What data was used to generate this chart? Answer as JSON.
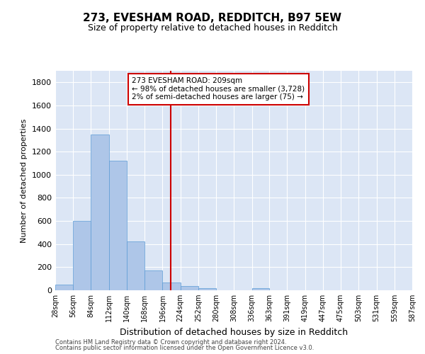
{
  "title": "273, EVESHAM ROAD, REDDITCH, B97 5EW",
  "subtitle": "Size of property relative to detached houses in Redditch",
  "xlabel": "Distribution of detached houses by size in Redditch",
  "ylabel": "Number of detached properties",
  "footnote1": "Contains HM Land Registry data © Crown copyright and database right 2024.",
  "footnote2": "Contains public sector information licensed under the Open Government Licence v3.0.",
  "annotation_line1": "273 EVESHAM ROAD: 209sqm",
  "annotation_line2": "← 98% of detached houses are smaller (3,728)",
  "annotation_line3": "2% of semi-detached houses are larger (75) →",
  "property_size": 209,
  "bar_color": "#aec6e8",
  "bar_edge_color": "#5b9bd5",
  "vline_color": "#cc0000",
  "annotation_box_color": "#cc0000",
  "background_color": "#dce6f5",
  "fig_background_color": "#ffffff",
  "bin_edges": [
    28,
    56,
    84,
    112,
    140,
    168,
    196,
    224,
    252,
    280,
    308,
    336,
    363,
    391,
    419,
    447,
    475,
    503,
    531,
    559,
    587
  ],
  "bar_heights": [
    50,
    600,
    1350,
    1120,
    420,
    170,
    65,
    35,
    20,
    0,
    0,
    20,
    0,
    0,
    0,
    0,
    0,
    0,
    0,
    0
  ],
  "ylim": [
    0,
    1900
  ],
  "yticks": [
    0,
    200,
    400,
    600,
    800,
    1000,
    1200,
    1400,
    1600,
    1800
  ],
  "title_fontsize": 11,
  "subtitle_fontsize": 9,
  "ylabel_fontsize": 8,
  "xlabel_fontsize": 9,
  "ytick_fontsize": 8,
  "xtick_fontsize": 7,
  "footnote_fontsize": 6,
  "annotation_fontsize": 7.5
}
